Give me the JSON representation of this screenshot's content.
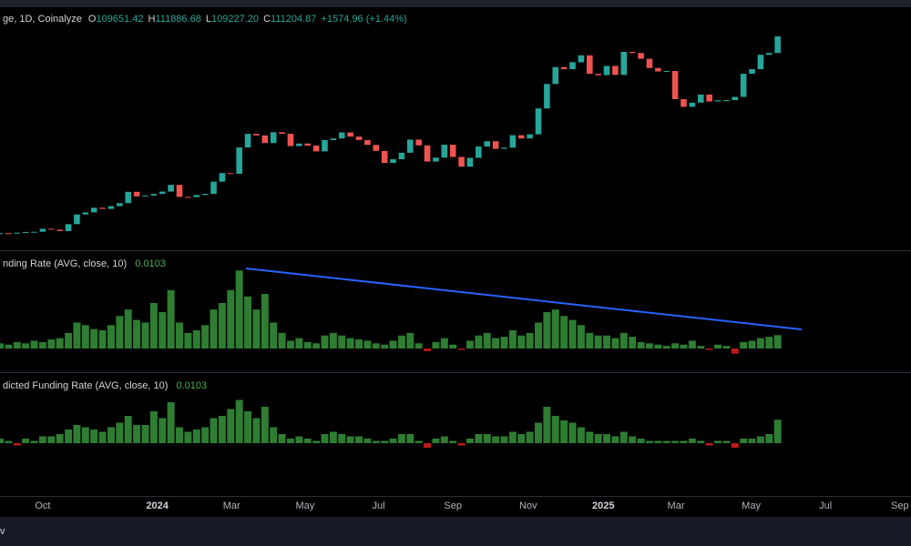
{
  "header": {
    "title": "ge, 1D, Coinalyze",
    "ohlc": [
      {
        "label": "O",
        "value": "109651.42"
      },
      {
        "label": "H",
        "value": "111886.68"
      },
      {
        "label": "L",
        "value": "109227.20"
      },
      {
        "label": "C",
        "value": "111204.87"
      }
    ],
    "change": "+1574.96 (+1.44%)"
  },
  "footer": {
    "text": "v"
  },
  "chart_data": [
    {
      "type": "candlestick",
      "up_color": "#26a69a",
      "down_color": "#ef5350",
      "xlim": [
        0,
        106.6
      ],
      "ylim": [
        18600,
        123000
      ],
      "xticks": [
        {
          "value": 5.0,
          "label": "Oct"
        },
        {
          "value": 18.4,
          "label": "2024"
        },
        {
          "value": 27.1,
          "label": "Mar"
        },
        {
          "value": 35.7,
          "label": "May"
        },
        {
          "value": 44.3,
          "label": "Jul"
        },
        {
          "value": 53.0,
          "label": "Sep"
        },
        {
          "value": 61.8,
          "label": "Nov"
        },
        {
          "value": 70.6,
          "label": "2025"
        },
        {
          "value": 79.1,
          "label": "Mar"
        },
        {
          "value": 87.9,
          "label": "May"
        },
        {
          "value": 96.6,
          "label": "Jul"
        },
        {
          "value": 105.3,
          "label": "Sep"
        }
      ],
      "values": [
        26000,
        25800,
        26200,
        26500,
        26600,
        27900,
        27500,
        26900,
        29900,
        34100,
        35000,
        37000,
        36500,
        37700,
        39000,
        43900,
        41900,
        42300,
        43000,
        44000,
        46900,
        41700,
        41600,
        42500,
        43000,
        48300,
        52000,
        51700,
        63100,
        69000,
        68300,
        65000,
        69700,
        69000,
        63700,
        64800,
        63900,
        61400,
        66300,
        67000,
        69600,
        67800,
        66300,
        64200,
        61600,
        56400,
        58000,
        60800,
        66500,
        64000,
        57000,
        58700,
        64300,
        59000,
        54800,
        58600,
        63500,
        65800,
        62500,
        63000,
        68400,
        67000,
        68800,
        80000,
        90600,
        97900,
        97000,
        100000,
        103000,
        95000,
        94400,
        98400,
        94500,
        104500,
        104000,
        101500,
        97500,
        96000,
        96200,
        84000,
        80700,
        82500,
        86000,
        83000,
        83500,
        83600,
        85000,
        95000,
        97000,
        103200,
        104000,
        111204.87
      ]
    },
    {
      "type": "bar",
      "title": "nding Rate (AVG, close, 10)",
      "last_value": 0.0103,
      "pos_color": "#2e7d32",
      "neg_color": "#b71c1c",
      "xlim": [
        0,
        106.6
      ],
      "ylim": [
        -0.0175,
        0.0742
      ],
      "values": [
        0.004,
        0.003,
        0.005,
        0.004,
        0.006,
        0.005,
        0.007,
        0.008,
        0.012,
        0.02,
        0.018,
        0.015,
        0.014,
        0.018,
        0.025,
        0.03,
        0.022,
        0.02,
        0.035,
        0.028,
        0.045,
        0.02,
        0.012,
        0.014,
        0.018,
        0.03,
        0.035,
        0.045,
        0.06,
        0.04,
        0.03,
        0.042,
        0.02,
        0.012,
        0.006,
        0.008,
        0.005,
        0.004,
        0.01,
        0.012,
        0.01,
        0.008,
        0.007,
        0.006,
        0.004,
        0.003,
        0.006,
        0.01,
        0.012,
        0.004,
        -0.002,
        0.005,
        0.008,
        0.003,
        -0.001,
        0.006,
        0.01,
        0.012,
        0.008,
        0.009,
        0.014,
        0.01,
        0.012,
        0.02,
        0.028,
        0.03,
        0.025,
        0.022,
        0.018,
        0.012,
        0.01,
        0.01,
        0.008,
        0.012,
        0.009,
        0.005,
        0.004,
        0.003,
        0.002,
        0.004,
        0.003,
        0.006,
        0.002,
        -0.001,
        0.003,
        0.002,
        -0.004,
        0.005,
        0.006,
        0.008,
        0.009,
        0.0103
      ]
    },
    {
      "type": "bar",
      "title": "dicted Funding Rate (AVG, close, 10)",
      "last_value": 0.0103,
      "pos_color": "#2e7d32",
      "neg_color": "#b71c1c",
      "xlim": [
        0,
        106.6
      ],
      "ylim": [
        -0.0232,
        0.0308
      ],
      "values": [
        0.002,
        0.001,
        -0.001,
        0.002,
        0.001,
        0.003,
        0.003,
        0.004,
        0.006,
        0.008,
        0.007,
        0.006,
        0.005,
        0.007,
        0.009,
        0.012,
        0.008,
        0.008,
        0.014,
        0.011,
        0.018,
        0.007,
        0.005,
        0.006,
        0.007,
        0.011,
        0.012,
        0.015,
        0.019,
        0.014,
        0.011,
        0.016,
        0.007,
        0.004,
        0.002,
        0.003,
        0.002,
        0.001,
        0.004,
        0.005,
        0.004,
        0.003,
        0.003,
        0.002,
        0.001,
        0.001,
        0.002,
        0.004,
        0.004,
        0.001,
        -0.002,
        0.002,
        0.003,
        0.001,
        -0.001,
        0.002,
        0.004,
        0.004,
        0.003,
        0.003,
        0.005,
        0.004,
        0.005,
        0.009,
        0.016,
        0.012,
        0.01,
        0.009,
        0.007,
        0.005,
        0.004,
        0.004,
        0.003,
        0.005,
        0.003,
        0.002,
        0.001,
        0.001,
        0.001,
        0.001,
        0.001,
        0.002,
        0.001,
        -0.001,
        0.001,
        0.001,
        -0.002,
        0.002,
        0.002,
        0.003,
        0.004,
        0.0103
      ]
    }
  ]
}
